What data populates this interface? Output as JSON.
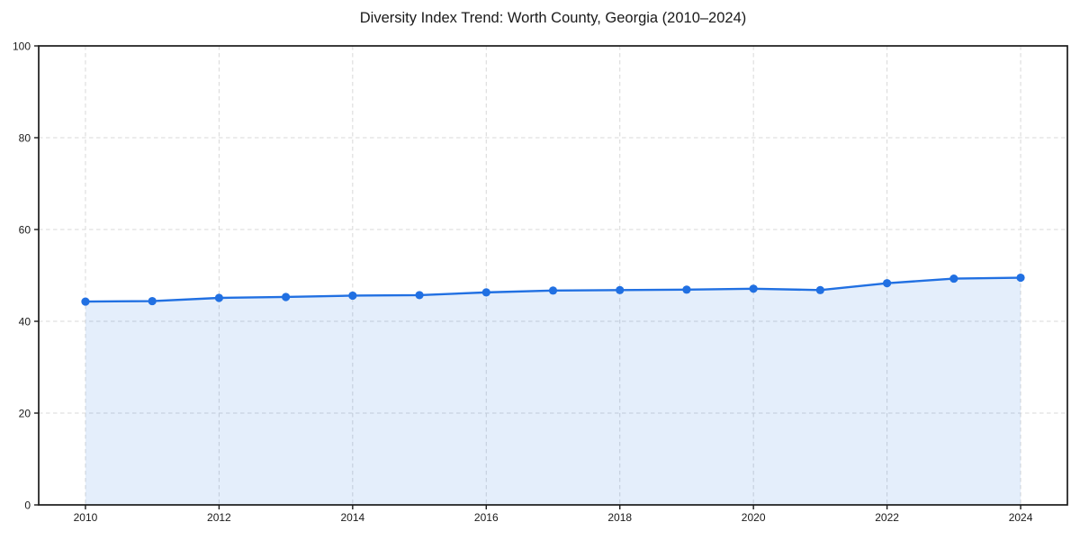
{
  "chart_data": {
    "type": "area",
    "title": "Diversity Index Trend: Worth County, Georgia (2010–2024)",
    "series_name": "Diversity Index",
    "x": [
      2010,
      2011,
      2012,
      2013,
      2014,
      2015,
      2016,
      2017,
      2018,
      2019,
      2020,
      2021,
      2022,
      2023,
      2024
    ],
    "values": [
      44.3,
      44.4,
      45.1,
      45.3,
      45.6,
      45.7,
      46.3,
      46.7,
      46.8,
      46.9,
      47.1,
      46.8,
      48.3,
      49.3,
      49.5
    ],
    "xlabel": "",
    "ylabel": "",
    "xlim": [
      2009.3,
      2024.7
    ],
    "ylim": [
      0,
      100
    ],
    "xticks": [
      2010,
      2012,
      2014,
      2016,
      2018,
      2020,
      2022,
      2024
    ],
    "xtick_labels": [
      "2010",
      "2012",
      "2014",
      "2016",
      "2018",
      "2020",
      "2022",
      "2024"
    ],
    "yticks": [
      0,
      20,
      40,
      60,
      80,
      100
    ],
    "ytick_labels": [
      "0",
      "20",
      "40",
      "60",
      "80",
      "100"
    ],
    "grid": "dashed, at labeled ticks only",
    "legend": "none",
    "frame": "full box",
    "colors": {
      "line": "#2170e2",
      "marker": "#2170e2",
      "fill": "rgba(33, 112, 226, 0.12)",
      "grid": "#d8d8d8",
      "axis": "#1a1a1a",
      "text": "#1a1a1a",
      "background": "#ffffff"
    }
  }
}
